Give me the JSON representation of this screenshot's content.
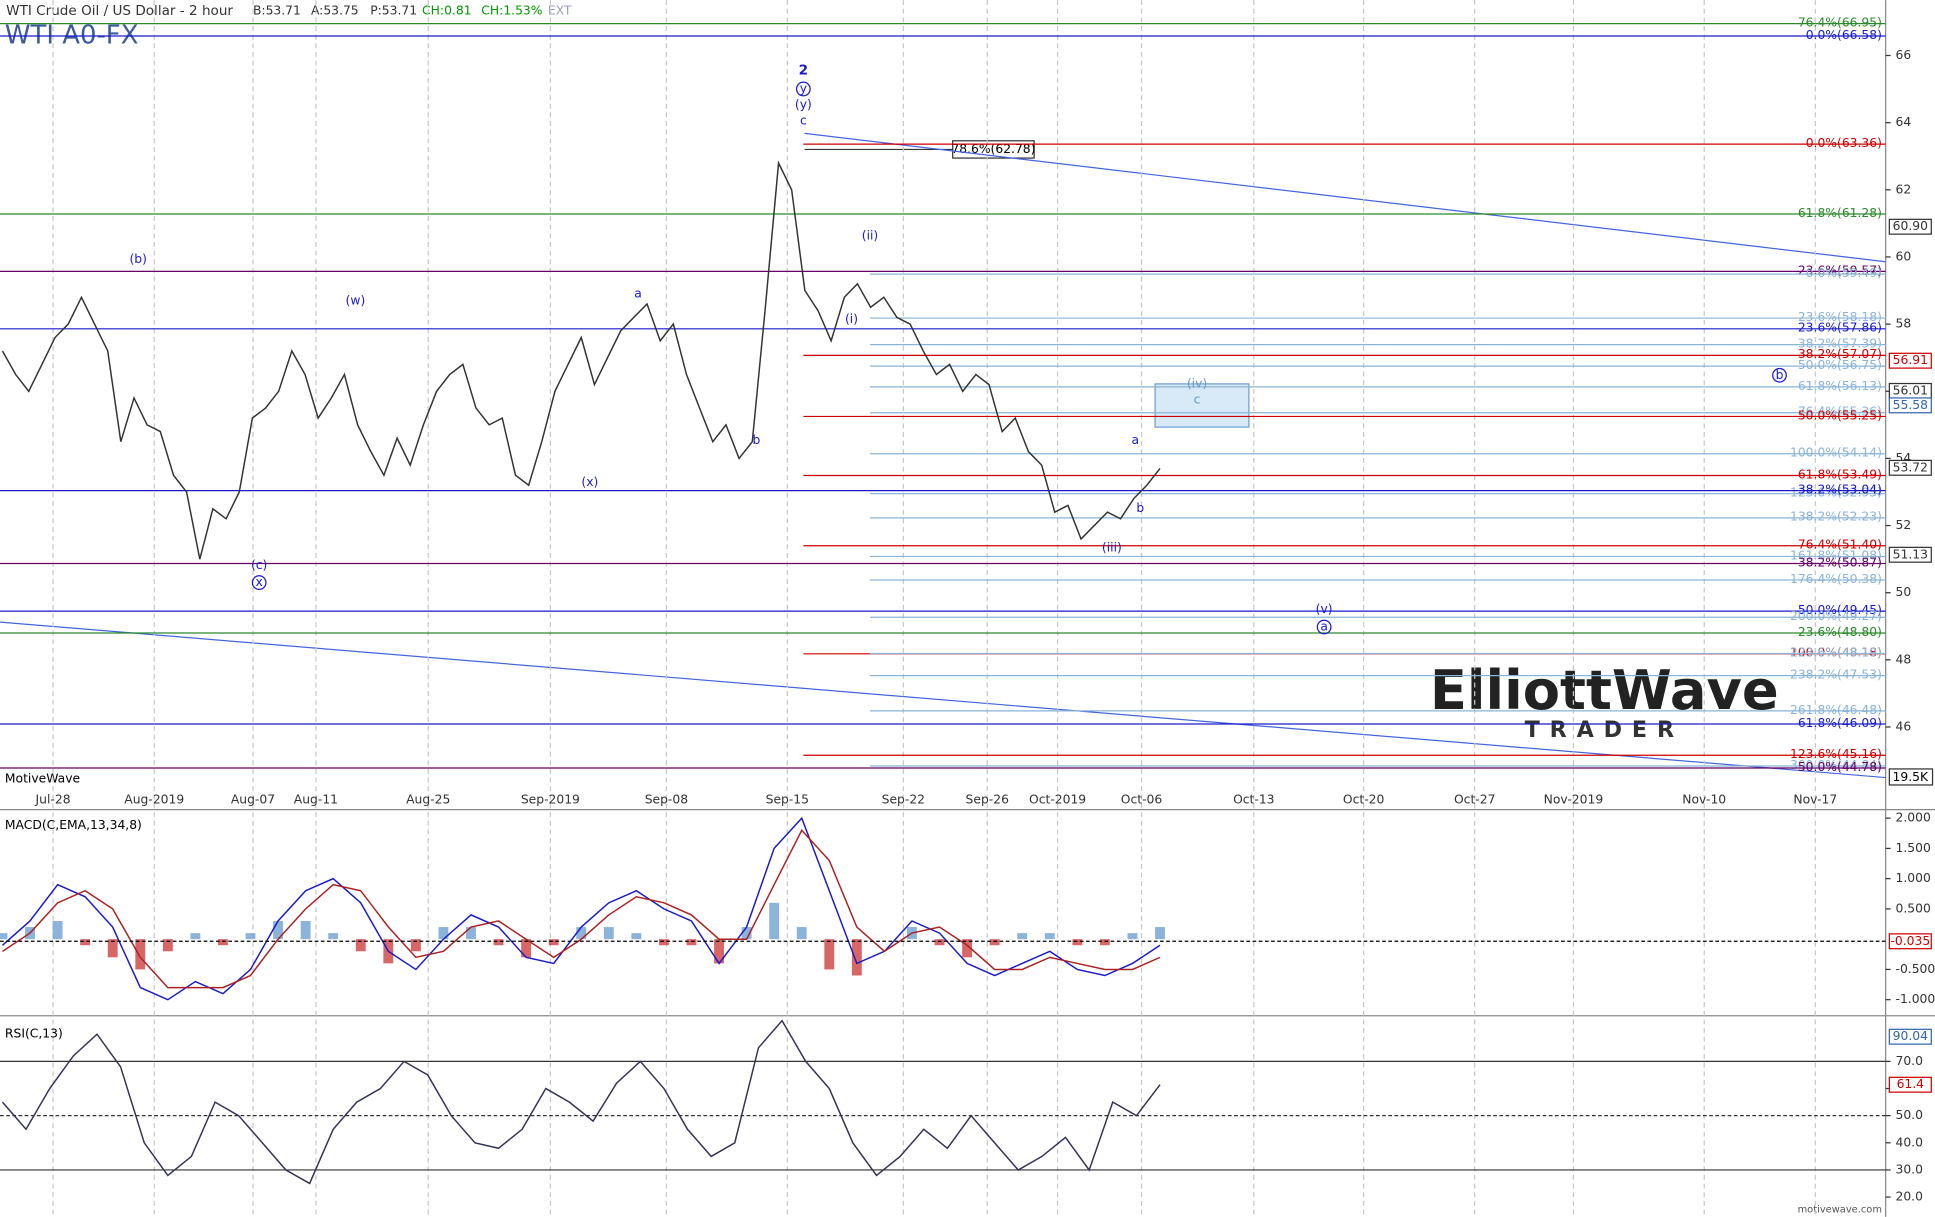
{
  "header": {
    "title": "WTI Crude Oil / US Dollar - 2 hour",
    "bid": "B:53.71",
    "ask": "A:53.75",
    "price": "P:53.71",
    "change": "CH:0.81",
    "change_pct": "CH:1.53%",
    "session": "EXT",
    "symbol": "WTI A0-FX",
    "watermark": "MotiveWave",
    "footer": "motivewave.com",
    "logo_top": "ElliottWave",
    "logo_bottom": "TRADER",
    "callout": "78.6%(62.78)",
    "volume_box": "19.5K"
  },
  "chart_data": [
    {
      "type": "line",
      "name": "price",
      "x_labels": [
        "Jul-28",
        "Aug-2019",
        "Aug-07",
        "Aug-11",
        "Aug-25",
        "Sep-2019",
        "Sep-08",
        "Sep-15",
        "Sep-22",
        "Sep-26",
        "Oct-2019",
        "Oct-06",
        "Oct-13",
        "Oct-20",
        "Oct-27",
        "Nov-2019",
        "Nov-10",
        "Nov-17"
      ],
      "series": [
        {
          "color": "#333333",
          "values": [
            57.2,
            56.5,
            56.0,
            56.8,
            57.6,
            58.0,
            58.8,
            58.0,
            57.2,
            54.5,
            55.8,
            55.0,
            54.8,
            53.5,
            53.0,
            51.0,
            52.5,
            52.2,
            53.0,
            55.2,
            55.5,
            56.0,
            57.2,
            56.5,
            55.2,
            55.8,
            56.5,
            55.0,
            54.2,
            53.5,
            54.6,
            53.8,
            55.0,
            56.0,
            56.5,
            56.8,
            55.5,
            55.0,
            55.2,
            53.5,
            53.2,
            54.5,
            56.0,
            56.8,
            57.6,
            56.2,
            57.0,
            57.8,
            58.2,
            58.6,
            57.5,
            58.0,
            56.5,
            55.5,
            54.5,
            55.0,
            54.0,
            54.5,
            58.5,
            62.8,
            62.0,
            59.0,
            58.4,
            57.5,
            58.8,
            59.2,
            58.5,
            58.8,
            58.2,
            58.0,
            57.2,
            56.5,
            56.8,
            56.0,
            56.5,
            56.2,
            54.8,
            55.2,
            54.2,
            53.8,
            52.4,
            52.6,
            51.6,
            52.0,
            52.4,
            52.2,
            52.8,
            53.2,
            53.7
          ]
        }
      ],
      "ylim": [
        44.2,
        67.65
      ],
      "yticks": [
        46,
        48,
        50,
        52,
        54,
        56,
        58,
        60,
        62,
        64,
        66
      ],
      "levels": [
        {
          "label": "76.4%(66.95)",
          "value": 66.95,
          "color": "#2a8a2a"
        },
        {
          "label": "0.0%(66.58)",
          "value": 66.58,
          "color": "#1a1acc"
        },
        {
          "label": "0.0%(63.36)",
          "value": 63.36,
          "color": "#cc0000"
        },
        {
          "label": "61.8%(61.28)",
          "value": 61.28,
          "color": "#2a8a2a"
        },
        {
          "label": "23.6%(59.57)",
          "value": 59.57,
          "color": "#660066"
        },
        {
          "label": "0.0%(59.49)",
          "value": 59.49,
          "color": "#8ab4d8"
        },
        {
          "label": "23.6%(58.18)",
          "value": 58.18,
          "color": "#8ab4d8"
        },
        {
          "label": "23.6%(57.86)",
          "value": 57.86,
          "color": "#1a1acc"
        },
        {
          "label": "38.2%(57.39)",
          "value": 57.39,
          "color": "#8ab4d8"
        },
        {
          "label": "38.2%(57.07)",
          "value": 57.07,
          "color": "#cc0000"
        },
        {
          "label": "50.0%(56.75)",
          "value": 56.75,
          "color": "#8ab4d8"
        },
        {
          "label": "61.8%(56.13)",
          "value": 56.13,
          "color": "#8ab4d8"
        },
        {
          "label": "76.4%(55.36)",
          "value": 55.36,
          "color": "#8ab4d8"
        },
        {
          "label": "50.0%(55.25)",
          "value": 55.25,
          "color": "#cc0000"
        },
        {
          "label": "100.0%(54.14)",
          "value": 54.14,
          "color": "#8ab4d8"
        },
        {
          "label": "61.8%(53.49)",
          "value": 53.49,
          "color": "#cc0000"
        },
        {
          "label": "123.6%(52.95)",
          "value": 52.95,
          "color": "#8ab4d8"
        },
        {
          "label": "38.2%(53.04)",
          "value": 53.04,
          "color": "#1a1acc"
        },
        {
          "label": "138.2%(52.23)",
          "value": 52.23,
          "color": "#8ab4d8"
        },
        {
          "label": "76.4%(51.40)",
          "value": 51.4,
          "color": "#cc0000"
        },
        {
          "label": "161.8%(51.08)",
          "value": 51.08,
          "color": "#8ab4d8"
        },
        {
          "label": "38.2%(50.87)",
          "value": 50.87,
          "color": "#660066"
        },
        {
          "label": "176.4%(50.38)",
          "value": 50.38,
          "color": "#8ab4d8"
        },
        {
          "label": "50.0%(49.45)",
          "value": 49.45,
          "color": "#1a1acc"
        },
        {
          "label": "200.0%(49.27)",
          "value": 49.27,
          "color": "#8ab4d8"
        },
        {
          "label": "23.6%(48.80)",
          "value": 48.8,
          "color": "#2a8a2a"
        },
        {
          "label": "100.0%(48.18)",
          "value": 48.18,
          "color": "#cc0000"
        },
        {
          "label": "223.6%(48.19)",
          "value": 48.19,
          "color": "#8ab4d8"
        },
        {
          "label": "238.2%(47.53)",
          "value": 47.53,
          "color": "#8ab4d8"
        },
        {
          "label": "261.8%(46.48)",
          "value": 46.48,
          "color": "#8ab4d8"
        },
        {
          "label": "61.8%(46.09)",
          "value": 46.09,
          "color": "#1a1acc"
        },
        {
          "label": "123.6%(45.16)",
          "value": 45.16,
          "color": "#cc0000"
        },
        {
          "label": "300.0%(44.84)",
          "value": 44.84,
          "color": "#8ab4d8"
        },
        {
          "label": "50.0%(44.78)",
          "value": 44.78,
          "color": "#660066"
        }
      ],
      "price_boxes": [
        {
          "value": 60.9,
          "label": "60.90",
          "color": "#333333"
        },
        {
          "value": 56.91,
          "color": "#cc0000"
        },
        {
          "value": 56.01,
          "color": "#333333"
        },
        {
          "value": 55.58,
          "color": "#3366aa"
        },
        {
          "value": 53.72,
          "color": "#333333"
        },
        {
          "value": 51.13,
          "color": "#333333"
        }
      ],
      "wave_labels": [
        "2",
        "y",
        "(y)",
        "c",
        "(b)",
        "(w)",
        "a",
        "b",
        "(x)",
        "(c)",
        "x",
        "(ii)",
        "(i)",
        "(iv)",
        "c",
        "b",
        "a",
        "b",
        "(iii)",
        "(v)",
        "a"
      ]
    },
    {
      "type": "line",
      "name": "macd",
      "title": "MACD(C,EMA,13,34,8)",
      "series": [
        {
          "name": "macd",
          "color": "#1a1acc",
          "values": [
            -0.1,
            0.3,
            0.9,
            0.7,
            0.2,
            -0.8,
            -1.0,
            -0.7,
            -0.9,
            -0.5,
            0.3,
            0.8,
            1.0,
            0.6,
            -0.2,
            -0.5,
            0.0,
            0.4,
            0.2,
            -0.3,
            -0.4,
            0.2,
            0.6,
            0.8,
            0.5,
            0.3,
            -0.4,
            0.2,
            1.5,
            2.0,
            0.8,
            -0.4,
            -0.2,
            0.3,
            0.1,
            -0.4,
            -0.6,
            -0.4,
            -0.2,
            -0.5,
            -0.6,
            -0.4,
            -0.1
          ]
        },
        {
          "name": "signal",
          "color": "#aa2222",
          "values": [
            -0.2,
            0.1,
            0.6,
            0.8,
            0.5,
            -0.3,
            -0.8,
            -0.8,
            -0.8,
            -0.6,
            0.0,
            0.5,
            0.9,
            0.8,
            0.2,
            -0.3,
            -0.2,
            0.2,
            0.3,
            0.0,
            -0.3,
            0.0,
            0.4,
            0.7,
            0.6,
            0.4,
            0.0,
            0.0,
            0.9,
            1.8,
            1.3,
            0.2,
            -0.2,
            0.1,
            0.2,
            -0.1,
            -0.5,
            -0.5,
            -0.3,
            -0.4,
            -0.5,
            -0.5,
            -0.3
          ]
        },
        {
          "name": "histogram",
          "color": "#6fa0d0",
          "negative_color": "#d04040",
          "values": [
            0.1,
            0.2,
            0.3,
            -0.1,
            -0.3,
            -0.5,
            -0.2,
            0.1,
            -0.1,
            0.1,
            0.3,
            0.3,
            0.1,
            -0.2,
            -0.4,
            -0.2,
            0.2,
            0.2,
            -0.1,
            -0.3,
            -0.1,
            0.2,
            0.2,
            0.1,
            -0.1,
            -0.1,
            -0.4,
            0.2,
            0.6,
            0.2,
            -0.5,
            -0.6,
            0.0,
            0.2,
            -0.1,
            -0.3,
            -0.1,
            0.1,
            0.1,
            -0.1,
            -0.1,
            0.1,
            0.2
          ]
        }
      ],
      "ylim": [
        -1.245,
        2.12
      ],
      "yticks": [
        {
          "value": 2,
          "label": "2.000"
        },
        {
          "value": 1.5,
          "label": "1.500"
        },
        {
          "value": 1,
          "label": "1.000"
        },
        {
          "value": 0.5,
          "label": "0.500"
        },
        {
          "value": -0.5,
          "label": "-0.500"
        },
        {
          "value": -1,
          "label": "-1.000"
        }
      ],
      "current": -0.035
    },
    {
      "type": "line",
      "name": "rsi",
      "title": "RSI(C,13)",
      "series": [
        {
          "color": "#333355",
          "values": [
            55,
            45,
            60,
            72,
            80,
            68,
            40,
            28,
            35,
            55,
            50,
            40,
            30,
            25,
            45,
            55,
            60,
            70,
            65,
            50,
            40,
            38,
            45,
            60,
            55,
            48,
            62,
            70,
            60,
            45,
            35,
            40,
            75,
            85,
            70,
            60,
            40,
            28,
            35,
            45,
            38,
            50,
            40,
            30,
            35,
            42,
            30,
            55,
            50,
            61.4
          ]
        }
      ],
      "ylim": [
        12.7,
        85.45
      ],
      "yticks": [
        {
          "value": 20,
          "label": "20.0"
        },
        {
          "value": 30,
          "label": "30.0"
        },
        {
          "value": 40,
          "label": "40.0"
        },
        {
          "value": 50,
          "label": "50.0"
        },
        {
          "value": 60,
          "label": "60.0"
        },
        {
          "value": 70,
          "label": "70.0"
        }
      ],
      "levels": [
        70,
        50,
        30
      ],
      "boxes": [
        {
          "value": 90.04,
          "color": "#3366aa"
        },
        {
          "value": 61.4,
          "color": "#cc0000"
        }
      ]
    }
  ]
}
